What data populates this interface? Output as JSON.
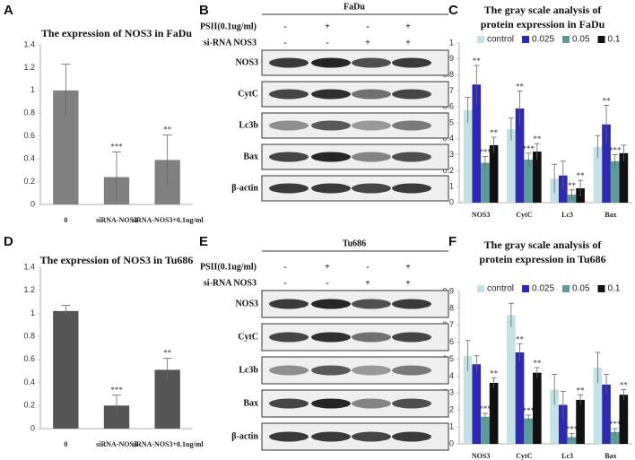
{
  "panel_labels": [
    "A",
    "B",
    "C",
    "D",
    "E",
    "F"
  ],
  "chart_data": [
    {
      "type": "bar",
      "title": [
        "The expression of NOS3 in FaDu"
      ],
      "categories": [
        "0",
        "siRNA-NOS3",
        "siRNA-NOS3+0.1ug/ml"
      ],
      "values": [
        1,
        0.24,
        0.39
      ],
      "errors": [
        0.23,
        0.22,
        0.22
      ],
      "significance": [
        null,
        "***",
        "**"
      ],
      "color": "#808080",
      "ylim": [
        0,
        1.4
      ],
      "yticks": [
        0,
        0.2,
        0.4,
        0.6,
        0.8,
        1,
        1.2,
        1.4
      ],
      "grid": false
    },
    {
      "type": "grouped_bar",
      "title": [
        "The gray scale analysis of",
        "protein expression in FaDu"
      ],
      "categories": [
        "NOS3",
        "CytC",
        "Lc3",
        "Bax"
      ],
      "series": [
        {
          "name": "control",
          "color": "#c3e2e6",
          "values": [
            0.58,
            0.46,
            0.15,
            0.35
          ],
          "errors": [
            0.08,
            0.07,
            0.09,
            0.07
          ],
          "significance": [
            null,
            null,
            null,
            null
          ]
        },
        {
          "name": "0.025",
          "color": "#2e2ab0",
          "values": [
            0.74,
            0.59,
            0.17,
            0.49
          ],
          "errors": [
            0.12,
            0.11,
            0.09,
            0.12
          ],
          "significance": [
            "**",
            "**",
            null,
            "**"
          ]
        },
        {
          "name": "0.05",
          "color": "#5b9b99",
          "values": [
            0.25,
            0.27,
            0.05,
            0.26
          ],
          "errors": [
            0.04,
            0.04,
            0.03,
            0.04
          ],
          "significance": [
            "***",
            "***",
            "**",
            "***"
          ]
        },
        {
          "name": "0.1",
          "color": "#111111",
          "values": [
            0.36,
            0.32,
            0.09,
            0.31
          ],
          "errors": [
            0.05,
            0.05,
            0.05,
            0.05
          ],
          "significance": [
            "**",
            "**",
            "**",
            null
          ]
        }
      ],
      "ylim": [
        0,
        1
      ],
      "yticks": [
        0,
        0.1,
        0.2,
        0.3,
        0.4,
        0.5,
        0.6,
        0.7,
        0.8,
        0.9,
        1
      ],
      "grid": false
    },
    {
      "type": "bar",
      "title": [
        "The expression of NOS3 in Tu686"
      ],
      "categories": [
        "0",
        "siRNA-NOS3",
        "siRNA-NOS3+0.1ug/ml"
      ],
      "values": [
        1.02,
        0.2,
        0.51
      ],
      "errors": [
        0.05,
        0.09,
        0.1
      ],
      "significance": [
        null,
        "***",
        "**"
      ],
      "color": "#555555",
      "ylim": [
        0,
        1.4
      ],
      "yticks": [
        0,
        0.2,
        0.4,
        0.6,
        0.8,
        1,
        1.2,
        1.4
      ],
      "grid": false
    },
    {
      "type": "grouped_bar",
      "title": [
        "The gray scale analysis of",
        "protein expression in Tu686"
      ],
      "categories": [
        "NOS3",
        "CytC",
        "Lc3",
        "Bax"
      ],
      "series": [
        {
          "name": "control",
          "color": "#c3e2e6",
          "values": [
            0.52,
            0.76,
            0.32,
            0.45
          ],
          "errors": [
            0.09,
            0.07,
            0.09,
            0.09
          ],
          "significance": [
            null,
            null,
            null,
            null
          ]
        },
        {
          "name": "0.025",
          "color": "#2e2ab0",
          "values": [
            0.47,
            0.54,
            0.23,
            0.35
          ],
          "errors": [
            0.05,
            0.05,
            0.08,
            0.06
          ],
          "significance": [
            null,
            "**",
            null,
            null
          ]
        },
        {
          "name": "0.05",
          "color": "#5b9b99",
          "values": [
            0.16,
            0.15,
            0.04,
            0.07
          ],
          "errors": [
            0.02,
            0.02,
            0.02,
            0.02
          ],
          "significance": [
            "***",
            "***",
            "***",
            "***"
          ]
        },
        {
          "name": "0.1",
          "color": "#111111",
          "values": [
            0.36,
            0.42,
            0.26,
            0.29
          ],
          "errors": [
            0.03,
            0.03,
            0.03,
            0.03
          ],
          "significance": [
            "**",
            "**",
            "**",
            "**"
          ]
        }
      ],
      "ylim": [
        0,
        0.9
      ],
      "yticks": [
        0,
        0.1,
        0.2,
        0.3,
        0.4,
        0.5,
        0.6,
        0.7,
        0.8,
        0.9
      ],
      "grid": false
    }
  ],
  "blots": [
    {
      "title": "FaDu",
      "conditions": [
        {
          "label": "PSII(0.1ug/ml)",
          "signs": [
            "-",
            "+",
            "-",
            "+"
          ]
        },
        {
          "label": "si-RNA NOS3",
          "signs": [
            "-",
            "-",
            "+",
            "+"
          ]
        }
      ],
      "rows": [
        "NOS3",
        "CytC",
        "Lc3b",
        "Bax",
        "β-actin"
      ]
    },
    {
      "title": "Tu686",
      "conditions": [
        {
          "label": "PSII(0.1ug/ml)",
          "signs": [
            "-",
            "+",
            "-",
            "+"
          ]
        },
        {
          "label": "si-RNA NOS3",
          "signs": [
            "-",
            "-",
            "+",
            "+"
          ]
        }
      ],
      "rows": [
        "NOS3",
        "CytC",
        "Lc3b",
        "Bax",
        "β-actin"
      ]
    }
  ]
}
